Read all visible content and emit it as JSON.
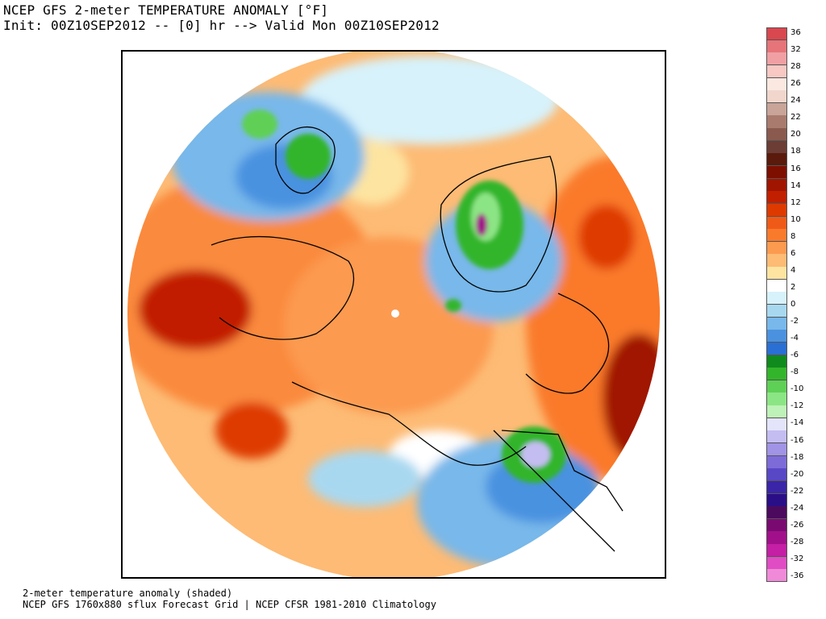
{
  "header": {
    "title": "NCEP GFS 2-meter TEMPERATURE ANOMALY [°F]",
    "subtitle": "Init: 00Z10SEP2012 -- [0] hr --> Valid Mon 00Z10SEP2012"
  },
  "footer": {
    "line1": "2-meter temperature anomaly (shaded)",
    "line2": "NCEP GFS 1760x880 sflux Forecast Grid | NCEP CFSR 1981-2010 Climatology"
  },
  "colorbar": {
    "labels": [
      "36",
      "32",
      "28",
      "26",
      "24",
      "22",
      "20",
      "18",
      "16",
      "14",
      "12",
      "10",
      "8",
      "6",
      "4",
      "2",
      "0",
      "-2",
      "-4",
      "-6",
      "-8",
      "-10",
      "-12",
      "-14",
      "-16",
      "-18",
      "-20",
      "-22",
      "-24",
      "-26",
      "-28",
      "-32",
      "-36"
    ],
    "colors": [
      "#d9474f",
      "#e67479",
      "#f0a0a3",
      "#f7c8c4",
      "#fae8e1",
      "#f0d6cc",
      "#c9a498",
      "#a87b6e",
      "#8a5a4f",
      "#6b3d34",
      "#5a1a0c",
      "#7d0f00",
      "#a01500",
      "#c21f00",
      "#de3a00",
      "#f05a18",
      "#fa7a2c",
      "#fc9a50",
      "#fdbb75",
      "#fde4a0",
      "#ffffff",
      "#d7f2fb",
      "#a8d8f0",
      "#78b8ea",
      "#4a92e0",
      "#2a6fd4",
      "#108a1c",
      "#33b52b",
      "#5ed055",
      "#8ce584",
      "#bff2b8",
      "#e4e4fb",
      "#c4bdf2",
      "#a193e6",
      "#7d6bd8",
      "#5848c6",
      "#3a25a8",
      "#2a0e88",
      "#4b0a5e",
      "#7a0a72",
      "#a1108a",
      "#c41fa5",
      "#e04cc4",
      "#f08ad8"
    ]
  },
  "map": {
    "projection": "north-polar-stereographic",
    "valid_period": "10 SEP 2012 00Z",
    "dominant_signal": "warm anomaly over Arctic Ocean and Siberia; cold anomaly over Greenland and Alaska"
  }
}
